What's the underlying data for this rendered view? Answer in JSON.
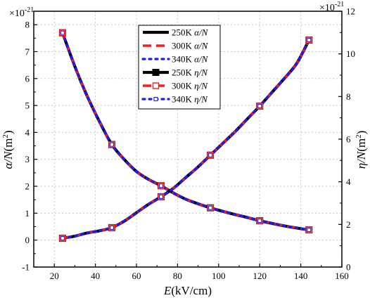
{
  "chart_data": {
    "type": "line",
    "x_axis": {
      "label_main": "E",
      "label_unit": "(kV/cm)",
      "range": [
        10,
        160
      ],
      "ticks": [
        20,
        40,
        60,
        80,
        100,
        120,
        140,
        160
      ]
    },
    "y_left": {
      "label_main": "α/N",
      "label_unit": "(m",
      "label_sup": "2",
      "label_end": ")",
      "range": [
        -1,
        8.5
      ],
      "ticks": [
        -1,
        0,
        1,
        2,
        3,
        4,
        5,
        6,
        7,
        8
      ],
      "multiplier_base": "×10",
      "multiplier_exp": "-21"
    },
    "y_right": {
      "label_main": "η/N",
      "label_unit": "(m",
      "label_sup": "2",
      "label_end": ")",
      "range": [
        0,
        12
      ],
      "ticks": [
        0,
        2,
        4,
        6,
        8,
        10,
        12
      ],
      "multiplier_base": "×10",
      "multiplier_exp": "-21"
    },
    "grid": true,
    "legend_placement": "top-center",
    "series": [
      {
        "name_prefix": "250K ",
        "name_var": "α/N",
        "axis": "left",
        "color": "#000000",
        "dash": "solid",
        "marker": "none",
        "width": 4.2,
        "x": [
          24,
          30,
          36,
          42,
          48,
          54,
          60,
          66,
          72,
          78,
          84,
          90,
          96,
          102,
          108,
          114,
          120,
          126,
          132,
          138,
          144
        ],
        "y": [
          7.7,
          6.45,
          5.35,
          4.4,
          3.55,
          3.0,
          2.55,
          2.25,
          2.02,
          1.75,
          1.52,
          1.35,
          1.2,
          1.07,
          0.95,
          0.84,
          0.72,
          0.62,
          0.53,
          0.45,
          0.38
        ]
      },
      {
        "name_prefix": "300K ",
        "name_var": "α/N",
        "axis": "left",
        "color": "#ff1a1a",
        "dash": "dash",
        "marker": "none",
        "width": 3.4,
        "x": [
          24,
          30,
          36,
          42,
          48,
          54,
          60,
          66,
          72,
          78,
          84,
          90,
          96,
          102,
          108,
          114,
          120,
          126,
          132,
          138,
          144
        ],
        "y": [
          7.7,
          6.45,
          5.35,
          4.4,
          3.55,
          3.0,
          2.55,
          2.25,
          2.02,
          1.75,
          1.52,
          1.35,
          1.2,
          1.07,
          0.95,
          0.84,
          0.72,
          0.62,
          0.53,
          0.45,
          0.38
        ]
      },
      {
        "name_prefix": "340K ",
        "name_var": "α/N",
        "axis": "left",
        "color": "#1a1aff",
        "dash": "dot",
        "marker": "none",
        "width": 3.2,
        "x": [
          24,
          30,
          36,
          42,
          48,
          54,
          60,
          66,
          72,
          78,
          84,
          90,
          96,
          102,
          108,
          114,
          120,
          126,
          132,
          138,
          144
        ],
        "y": [
          7.7,
          6.45,
          5.35,
          4.4,
          3.55,
          3.0,
          2.55,
          2.25,
          2.02,
          1.75,
          1.52,
          1.35,
          1.2,
          1.07,
          0.95,
          0.84,
          0.72,
          0.62,
          0.53,
          0.45,
          0.38
        ]
      },
      {
        "name_prefix": "250K ",
        "name_var": "η/N",
        "axis": "right",
        "color": "#000000",
        "dash": "solid",
        "marker": "filled-square",
        "width": 4.2,
        "x": [
          24,
          30,
          36,
          42,
          48,
          54,
          60,
          66,
          72,
          78,
          84,
          90,
          96,
          102,
          108,
          114,
          120,
          126,
          132,
          138,
          144
        ],
        "y": [
          1.35,
          1.45,
          1.6,
          1.7,
          1.85,
          2.15,
          2.55,
          2.95,
          3.3,
          3.7,
          4.2,
          4.7,
          5.25,
          5.8,
          6.35,
          6.95,
          7.55,
          8.2,
          8.85,
          9.55,
          10.65
        ],
        "marker_x": [
          24,
          48,
          72,
          96,
          120,
          144
        ]
      },
      {
        "name_prefix": "300K ",
        "name_var": "η/N",
        "axis": "right",
        "color": "#ff1a1a",
        "dash": "dash",
        "marker": "open-square",
        "width": 3.4,
        "x": [
          24,
          30,
          36,
          42,
          48,
          54,
          60,
          66,
          72,
          78,
          84,
          90,
          96,
          102,
          108,
          114,
          120,
          126,
          132,
          138,
          144
        ],
        "y": [
          1.35,
          1.45,
          1.6,
          1.7,
          1.85,
          2.15,
          2.55,
          2.95,
          3.3,
          3.7,
          4.2,
          4.7,
          5.25,
          5.8,
          6.35,
          6.95,
          7.55,
          8.2,
          8.85,
          9.55,
          10.65
        ],
        "marker_x": [
          24,
          48,
          72,
          96,
          120,
          144
        ]
      },
      {
        "name_prefix": "340K ",
        "name_var": "η/N",
        "axis": "right",
        "color": "#1a1aff",
        "dash": "dot",
        "marker": "open-square-small",
        "width": 3.2,
        "x": [
          24,
          30,
          36,
          42,
          48,
          54,
          60,
          66,
          72,
          78,
          84,
          90,
          96,
          102,
          108,
          114,
          120,
          126,
          132,
          138,
          144
        ],
        "y": [
          1.35,
          1.45,
          1.6,
          1.7,
          1.85,
          2.15,
          2.55,
          2.95,
          3.3,
          3.7,
          4.2,
          4.7,
          5.25,
          5.8,
          6.35,
          6.95,
          7.55,
          8.2,
          8.85,
          9.55,
          10.65
        ],
        "marker_x": [
          24,
          48,
          72,
          96,
          120,
          144
        ]
      }
    ]
  }
}
